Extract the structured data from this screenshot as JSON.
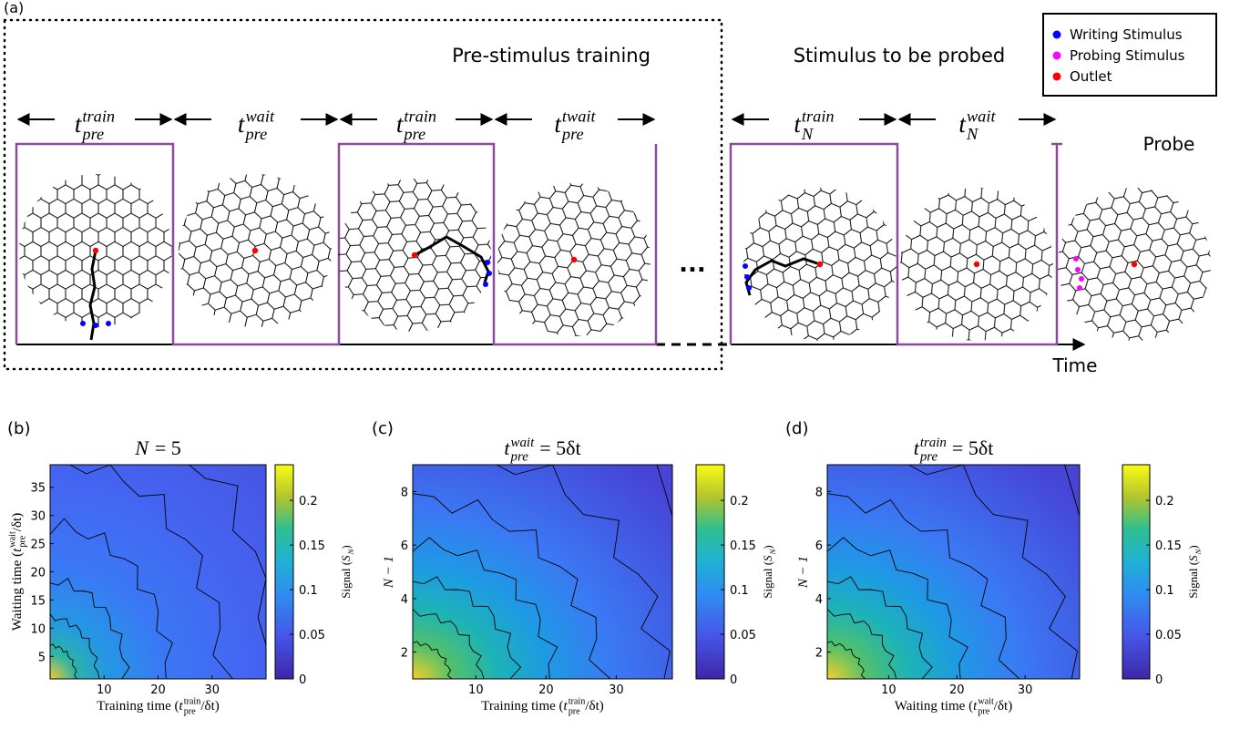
{
  "panel_a": {
    "label": "(a)",
    "region_titles": [
      "Pre-stimulus training",
      "Stimulus to be probed"
    ],
    "probe": "Probe",
    "ellipsis": "...",
    "time_axis": "Time",
    "intervals": [
      {
        "symbol": "t",
        "sub": "pre",
        "sup": "train"
      },
      {
        "symbol": "t",
        "sub": "pre",
        "sup": "wait"
      },
      {
        "symbol": "t",
        "sub": "pre",
        "sup": "train"
      },
      {
        "symbol": "t",
        "sub": "pre",
        "sup": "twait"
      },
      {
        "symbol": "t",
        "sub": "N",
        "sup": "train"
      },
      {
        "symbol": "t",
        "sub": "N",
        "sup": "wait"
      }
    ],
    "legend": [
      {
        "name": "Writing Stimulus",
        "color": "#0000ff"
      },
      {
        "name": "Probing Stimulus",
        "color": "#ff00ff"
      },
      {
        "name": "Outlet",
        "color": "#ff0000"
      }
    ]
  },
  "plots": [
    {
      "label": "(b)",
      "title": {
        "symbol": "N",
        "rest": "= 5"
      },
      "xlabel": {
        "before": "Training time (",
        "symbol": "t",
        "sub": "pre",
        "sup": "train",
        "after": "/δt)"
      },
      "ylabel": {
        "before": "Waiting time (",
        "symbol": "t",
        "sub": "pre",
        "sup": "wait",
        "after": "/δt)"
      },
      "colorbar_label": {
        "before": "Signal (",
        "symbol": "S",
        "sub": "N",
        "after": ")"
      },
      "xlim": [
        0,
        40
      ],
      "xticks": [
        10,
        20,
        30
      ],
      "ylim": [
        1,
        39
      ],
      "yticks": [
        5,
        10,
        15,
        20,
        25,
        30,
        35
      ],
      "clim": [
        0,
        0.24
      ],
      "cticks": [
        0,
        0.05,
        0.1,
        0.15,
        0.2
      ]
    },
    {
      "label": "(c)",
      "title": {
        "symbol": "t",
        "sub": "pre",
        "sup": "wait",
        "rest": "= 5δt"
      },
      "xlabel": {
        "before": "Training time (",
        "symbol": "t",
        "sub": "pre",
        "sup": "train",
        "after": "/δt)"
      },
      "ylabel": "N − 1",
      "colorbar_label": {
        "before": "Signal (",
        "symbol": "S",
        "sub": "N",
        "after": ")"
      },
      "xlim": [
        1,
        38
      ],
      "xticks": [
        10,
        20,
        30
      ],
      "ylim": [
        1,
        9
      ],
      "yticks": [
        2,
        4,
        6,
        8
      ],
      "clim": [
        0,
        0.24
      ],
      "cticks": [
        0,
        0.05,
        0.1,
        0.15,
        0.2
      ]
    },
    {
      "label": "(d)",
      "title": {
        "symbol": "t",
        "sub": "pre",
        "sup": "train",
        "rest": "= 5δt"
      },
      "xlabel": {
        "before": "Waiting time (",
        "symbol": "t",
        "sub": "pre",
        "sup": "wait",
        "after": "/δt)"
      },
      "ylabel": "N − 1",
      "colorbar_label": {
        "before": "Signal (",
        "symbol": "S",
        "sub": "N",
        "after": ")"
      },
      "xlim": [
        1,
        38
      ],
      "xticks": [
        10,
        20,
        30
      ],
      "ylim": [
        1,
        9
      ],
      "yticks": [
        2,
        4,
        6,
        8
      ],
      "clim": [
        0,
        0.24
      ],
      "cticks": [
        0,
        0.05,
        0.1,
        0.15,
        0.2
      ]
    }
  ]
}
